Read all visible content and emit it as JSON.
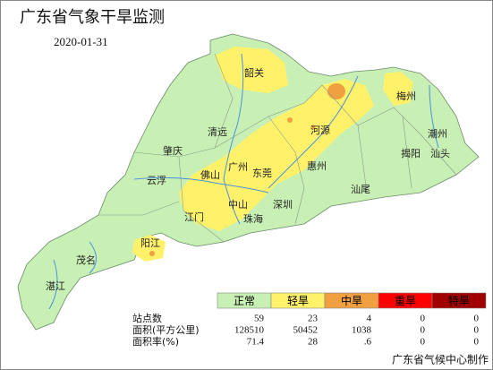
{
  "header": {
    "title": "广东省气象干旱监测",
    "date": "2020-01-31"
  },
  "cities": [
    "韶关",
    "河源",
    "梅州",
    "潮州",
    "揭阳",
    "汕头",
    "清远",
    "肇庆",
    "广州",
    "东莞",
    "惠州",
    "云浮",
    "佛山",
    "汕尾",
    "中山",
    "深圳",
    "江门",
    "珠海",
    "阳江",
    "茂名",
    "湛江"
  ],
  "legend": {
    "levels": [
      {
        "label": "正常",
        "color": "#c8f0b4"
      },
      {
        "label": "轻旱",
        "color": "#fff26a"
      },
      {
        "label": "中旱",
        "color": "#f0a040"
      },
      {
        "label": "重旱",
        "color": "#ff0000"
      },
      {
        "label": "特旱",
        "color": "#a00000"
      }
    ]
  },
  "stats": {
    "rows": [
      {
        "label": "站点数",
        "values": [
          "59",
          "23",
          "4",
          "0",
          "0"
        ]
      },
      {
        "label": "面积(平方公里)",
        "values": [
          "128510",
          "50452",
          "1038",
          "0",
          "0"
        ]
      },
      {
        "label": "面积率(%)",
        "values": [
          "71.4",
          "28",
          ".6",
          "0",
          "0"
        ]
      }
    ]
  },
  "footer": "广东省气候中心制作"
}
